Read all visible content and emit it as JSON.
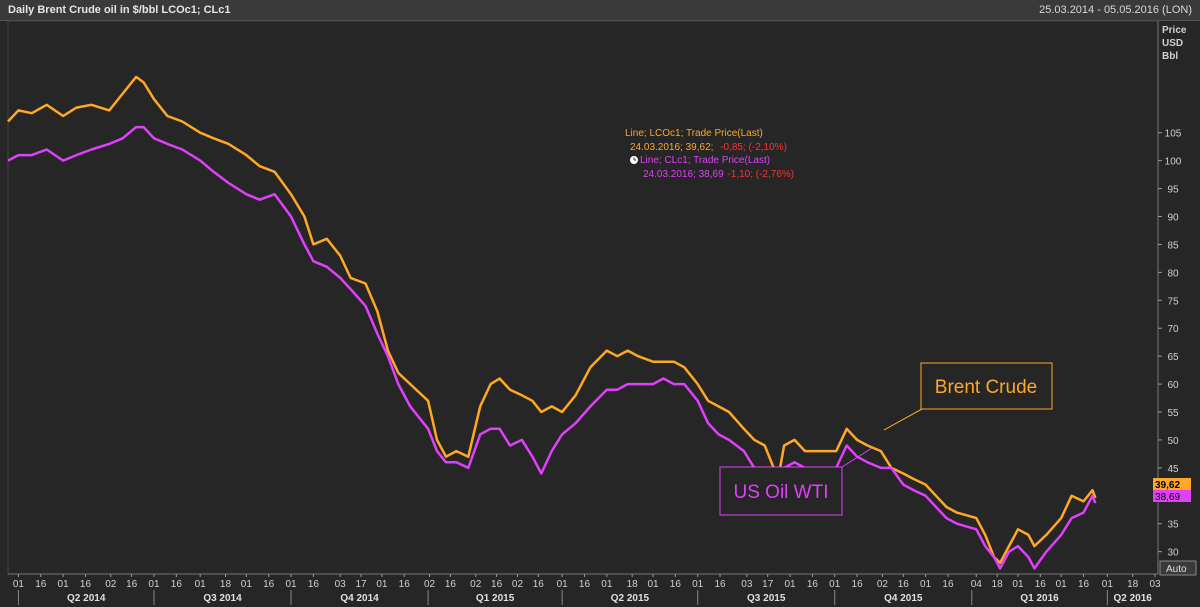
{
  "header": {
    "title": "Daily Brent Crude oil in $/bbl LCOc1; CLc1",
    "date_range": "25.03.2014 - 05.05.2016 (LON)"
  },
  "axis": {
    "y_unit_lines": [
      "Price",
      "USD",
      "Bbl"
    ],
    "auto_button": "Auto"
  },
  "tooltip": {
    "brent_line1": "Line; LCOc1; Trade Price(Last)",
    "brent_line2_prefix": "24.03.2016; 39,62;",
    "brent_line2_change": "-0,85; (-2,10%)",
    "wti_line1": "Line; CLc1; Trade Price(Last)",
    "wti_line2_prefix": "24.03.2016; 38,69",
    "wti_line2_change": "-1,10; (-2,76%)"
  },
  "annotations": {
    "brent_label": "Brent Crude",
    "wti_label": "US Oil WTI"
  },
  "colors": {
    "background": "#262626",
    "brent": "#FFA726",
    "wti": "#E040FB",
    "grid": "#4a4a4a",
    "axis_text": "#d0d0d0",
    "negative": "#ff3030"
  },
  "chart_data": {
    "type": "line",
    "x_type": "date",
    "xlim": [
      "2014-03-25",
      "2016-05-05"
    ],
    "ylim": [
      26,
      125
    ],
    "y_ticks": [
      30,
      35,
      40,
      45,
      50,
      55,
      60,
      65,
      70,
      75,
      80,
      85,
      90,
      95,
      100,
      105
    ],
    "grid": false,
    "last_values": [
      "39,62",
      "38,69"
    ],
    "x_tick_labels": [
      {
        "date": "2014-04-01",
        "label": "01"
      },
      {
        "date": "2014-04-16",
        "label": "16"
      },
      {
        "date": "2014-05-01",
        "label": "01"
      },
      {
        "date": "2014-05-16",
        "label": "16"
      },
      {
        "date": "2014-06-02",
        "label": "02"
      },
      {
        "date": "2014-06-16",
        "label": "16"
      },
      {
        "date": "2014-07-01",
        "label": "01"
      },
      {
        "date": "2014-07-16",
        "label": "16"
      },
      {
        "date": "2014-08-01",
        "label": "01"
      },
      {
        "date": "2014-08-18",
        "label": "18"
      },
      {
        "date": "2014-09-01",
        "label": "01"
      },
      {
        "date": "2014-09-16",
        "label": "16"
      },
      {
        "date": "2014-10-01",
        "label": "01"
      },
      {
        "date": "2014-10-16",
        "label": "16"
      },
      {
        "date": "2014-11-03",
        "label": "03"
      },
      {
        "date": "2014-11-17",
        "label": "17"
      },
      {
        "date": "2014-12-01",
        "label": "01"
      },
      {
        "date": "2014-12-16",
        "label": "16"
      },
      {
        "date": "2015-01-02",
        "label": "02"
      },
      {
        "date": "2015-01-16",
        "label": "16"
      },
      {
        "date": "2015-02-02",
        "label": "02"
      },
      {
        "date": "2015-02-16",
        "label": "16"
      },
      {
        "date": "2015-03-02",
        "label": "02"
      },
      {
        "date": "2015-03-16",
        "label": "16"
      },
      {
        "date": "2015-04-01",
        "label": "01"
      },
      {
        "date": "2015-04-16",
        "label": "16"
      },
      {
        "date": "2015-05-01",
        "label": "01"
      },
      {
        "date": "2015-05-18",
        "label": "18"
      },
      {
        "date": "2015-06-01",
        "label": "01"
      },
      {
        "date": "2015-06-16",
        "label": "16"
      },
      {
        "date": "2015-07-01",
        "label": "01"
      },
      {
        "date": "2015-07-16",
        "label": "16"
      },
      {
        "date": "2015-08-03",
        "label": "03"
      },
      {
        "date": "2015-08-17",
        "label": "17"
      },
      {
        "date": "2015-09-01",
        "label": "01"
      },
      {
        "date": "2015-09-16",
        "label": "16"
      },
      {
        "date": "2015-10-01",
        "label": "01"
      },
      {
        "date": "2015-10-16",
        "label": "16"
      },
      {
        "date": "2015-11-02",
        "label": "02"
      },
      {
        "date": "2015-11-16",
        "label": "16"
      },
      {
        "date": "2015-12-01",
        "label": "01"
      },
      {
        "date": "2015-12-16",
        "label": "16"
      },
      {
        "date": "2016-01-04",
        "label": "04"
      },
      {
        "date": "2016-01-18",
        "label": "18"
      },
      {
        "date": "2016-02-01",
        "label": "01"
      },
      {
        "date": "2016-02-16",
        "label": "16"
      },
      {
        "date": "2016-03-01",
        "label": "01"
      },
      {
        "date": "2016-03-16",
        "label": "16"
      },
      {
        "date": "2016-04-01",
        "label": "01"
      },
      {
        "date": "2016-04-18",
        "label": "18"
      },
      {
        "date": "2016-05-03",
        "label": "03"
      }
    ],
    "quarter_labels": [
      {
        "label": "Q2 2014",
        "start": "2014-04-01",
        "end": "2014-07-01"
      },
      {
        "label": "Q3 2014",
        "start": "2014-07-01",
        "end": "2014-10-01"
      },
      {
        "label": "Q4 2014",
        "start": "2014-10-01",
        "end": "2015-01-01"
      },
      {
        "label": "Q1 2015",
        "start": "2015-01-01",
        "end": "2015-04-01"
      },
      {
        "label": "Q2 2015",
        "start": "2015-04-01",
        "end": "2015-07-01"
      },
      {
        "label": "Q3 2015",
        "start": "2015-07-01",
        "end": "2015-10-01"
      },
      {
        "label": "Q4 2015",
        "start": "2015-10-01",
        "end": "2016-01-01"
      },
      {
        "label": "Q1 2016",
        "start": "2016-01-01",
        "end": "2016-04-01"
      },
      {
        "label": "Q2 2016",
        "start": "2016-04-01",
        "end": "2016-05-05"
      }
    ],
    "series": [
      {
        "name": "LCOc1",
        "x": [
          "2014-03-25",
          "2014-04-01",
          "2014-04-10",
          "2014-04-20",
          "2014-05-01",
          "2014-05-10",
          "2014-05-20",
          "2014-06-01",
          "2014-06-10",
          "2014-06-19",
          "2014-06-24",
          "2014-07-01",
          "2014-07-10",
          "2014-07-20",
          "2014-08-01",
          "2014-08-10",
          "2014-08-20",
          "2014-09-01",
          "2014-09-10",
          "2014-09-20",
          "2014-10-01",
          "2014-10-10",
          "2014-10-16",
          "2014-10-25",
          "2014-11-03",
          "2014-11-10",
          "2014-11-20",
          "2014-11-28",
          "2014-12-05",
          "2014-12-12",
          "2014-12-20",
          "2015-01-01",
          "2015-01-07",
          "2015-01-13",
          "2015-01-20",
          "2015-01-28",
          "2015-02-05",
          "2015-02-12",
          "2015-02-18",
          "2015-02-25",
          "2015-03-05",
          "2015-03-12",
          "2015-03-18",
          "2015-03-25",
          "2015-04-01",
          "2015-04-10",
          "2015-04-20",
          "2015-05-01",
          "2015-05-08",
          "2015-05-15",
          "2015-05-22",
          "2015-06-01",
          "2015-06-08",
          "2015-06-15",
          "2015-06-22",
          "2015-07-01",
          "2015-07-08",
          "2015-07-15",
          "2015-07-22",
          "2015-08-01",
          "2015-08-08",
          "2015-08-15",
          "2015-08-21",
          "2015-08-24",
          "2015-08-28",
          "2015-09-04",
          "2015-09-11",
          "2015-09-18",
          "2015-09-25",
          "2015-10-02",
          "2015-10-09",
          "2015-10-16",
          "2015-10-23",
          "2015-11-01",
          "2015-11-08",
          "2015-11-16",
          "2015-11-23",
          "2015-12-01",
          "2015-12-08",
          "2015-12-15",
          "2015-12-22",
          "2016-01-04",
          "2016-01-10",
          "2016-01-16",
          "2016-01-20",
          "2016-01-26",
          "2016-02-01",
          "2016-02-08",
          "2016-02-12",
          "2016-02-20",
          "2016-03-01",
          "2016-03-08",
          "2016-03-16",
          "2016-03-22",
          "2016-03-24"
        ],
        "values": [
          107,
          109,
          108.5,
          110,
          108,
          109.5,
          110,
          109,
          112,
          115,
          114,
          111,
          108,
          107,
          105,
          104,
          103,
          101,
          99,
          98,
          94,
          90,
          85,
          86,
          83,
          79,
          78,
          73,
          66,
          62,
          60,
          57,
          50,
          47,
          48,
          47,
          56,
          60,
          61,
          59,
          58,
          57,
          55,
          56,
          55,
          58,
          63,
          66,
          65,
          66,
          65,
          64,
          64,
          64,
          63,
          60,
          57,
          56,
          55,
          52,
          50,
          49,
          45,
          43,
          49,
          50,
          48,
          48,
          48,
          48,
          52,
          50,
          49,
          48,
          45,
          44,
          43,
          42,
          40,
          38,
          37,
          36,
          33,
          29,
          28,
          31,
          34,
          33,
          31,
          33,
          36,
          40,
          39,
          41,
          39.62
        ]
      },
      {
        "name": "CLc1",
        "x": [
          "2014-03-25",
          "2014-04-01",
          "2014-04-10",
          "2014-04-20",
          "2014-05-01",
          "2014-05-10",
          "2014-05-20",
          "2014-06-01",
          "2014-06-10",
          "2014-06-19",
          "2014-06-24",
          "2014-07-01",
          "2014-07-10",
          "2014-07-20",
          "2014-08-01",
          "2014-08-10",
          "2014-08-20",
          "2014-09-01",
          "2014-09-10",
          "2014-09-20",
          "2014-10-01",
          "2014-10-10",
          "2014-10-16",
          "2014-10-25",
          "2014-11-03",
          "2014-11-10",
          "2014-11-20",
          "2014-11-28",
          "2014-12-05",
          "2014-12-12",
          "2014-12-20",
          "2015-01-01",
          "2015-01-07",
          "2015-01-13",
          "2015-01-20",
          "2015-01-28",
          "2015-02-05",
          "2015-02-12",
          "2015-02-18",
          "2015-02-25",
          "2015-03-05",
          "2015-03-12",
          "2015-03-18",
          "2015-03-25",
          "2015-04-01",
          "2015-04-10",
          "2015-04-20",
          "2015-05-01",
          "2015-05-08",
          "2015-05-15",
          "2015-05-22",
          "2015-06-01",
          "2015-06-08",
          "2015-06-15",
          "2015-06-22",
          "2015-07-01",
          "2015-07-08",
          "2015-07-15",
          "2015-07-22",
          "2015-08-01",
          "2015-08-08",
          "2015-08-15",
          "2015-08-21",
          "2015-08-24",
          "2015-08-28",
          "2015-09-04",
          "2015-09-11",
          "2015-09-18",
          "2015-09-25",
          "2015-10-02",
          "2015-10-09",
          "2015-10-16",
          "2015-10-23",
          "2015-11-01",
          "2015-11-08",
          "2015-11-16",
          "2015-11-23",
          "2015-12-01",
          "2015-12-08",
          "2015-12-15",
          "2015-12-22",
          "2016-01-04",
          "2016-01-10",
          "2016-01-16",
          "2016-01-20",
          "2016-01-26",
          "2016-02-01",
          "2016-02-08",
          "2016-02-12",
          "2016-02-20",
          "2016-03-01",
          "2016-03-08",
          "2016-03-16",
          "2016-03-22",
          "2016-03-24"
        ],
        "values": [
          100,
          101,
          101,
          102,
          100,
          101,
          102,
          103,
          104,
          106,
          106,
          104,
          103,
          102,
          100,
          98,
          96,
          94,
          93,
          94,
          90,
          85,
          82,
          81,
          79,
          77,
          74,
          69,
          65,
          60,
          56,
          52,
          48,
          46,
          46,
          45,
          51,
          52,
          52,
          49,
          50,
          47,
          44,
          48,
          51,
          53,
          56,
          59,
          59,
          60,
          60,
          60,
          61,
          60,
          60,
          57,
          53,
          51,
          50,
          48,
          45,
          43,
          40,
          39,
          45,
          46,
          45,
          45,
          45,
          45,
          49,
          47,
          46,
          45,
          45,
          42,
          41,
          40,
          38,
          36,
          35,
          34,
          31,
          29,
          27,
          30,
          31,
          29,
          27,
          30,
          33,
          36,
          37,
          40,
          38.69
        ]
      }
    ]
  }
}
